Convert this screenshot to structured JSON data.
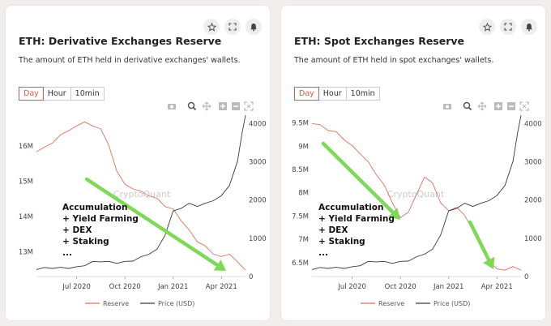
{
  "cards": [
    {
      "title": "ETH: Derivative Exchanges Reserve",
      "description": "The amount of ETH held in derivative exchanges' wallets.",
      "tabs": [
        "Day",
        "Hour",
        "10min"
      ],
      "active_tab": "Day"
    },
    {
      "title": "ETH: Spot Exchanges Reserve",
      "description": "The amount of ETH held in spot exchanges' wallets.",
      "tabs": [
        "Day",
        "Hour",
        "10min"
      ],
      "active_tab": "Day"
    }
  ],
  "toolbar_icons": [
    "star-icon",
    "expand-icon",
    "bell-icon"
  ],
  "chart_toolbar_icons": [
    "camera-icon",
    "zoom-icon",
    "pan-icon",
    "zoom-in-icon",
    "zoom-out-icon",
    "autoscale-icon"
  ],
  "colors": {
    "reserve": "#e0705a",
    "price": "#3a3a3a",
    "arrow": "#7ed957",
    "tab_active": "#e0584e"
  },
  "chart_data": [
    {
      "type": "line",
      "x_ticks": [
        "Jul 2020",
        "Oct 2020",
        "Jan 2021",
        "Apr 2021"
      ],
      "x_tick_months": [
        3.5,
        6.5,
        9.5,
        12.5
      ],
      "xlim_months": [
        1.0,
        14.0
      ],
      "yaxis_left": {
        "ticks": [
          "13M",
          "14M",
          "15M",
          "16M"
        ],
        "values": [
          13,
          14,
          15,
          16
        ],
        "range": [
          12.3,
          16.85
        ],
        "unit": "M"
      },
      "yaxis_right": {
        "ticks": [
          "0",
          "1000",
          "2000",
          "3000",
          "4000"
        ],
        "values": [
          0,
          1000,
          2000,
          3000,
          4000
        ],
        "range": [
          0,
          4200
        ]
      },
      "series": [
        {
          "name": "Reserve",
          "axis": "left",
          "color": "#e0705a",
          "months": [
            1.0,
            1.5,
            2.0,
            2.5,
            3.0,
            3.5,
            4.0,
            4.5,
            5.0,
            5.5,
            6.0,
            6.5,
            7.0,
            7.5,
            8.0,
            8.5,
            9.0,
            9.5,
            10.0,
            10.5,
            11.0,
            11.5,
            12.0,
            12.5,
            13.0,
            13.5,
            14.0
          ],
          "values": [
            15.85,
            15.95,
            16.1,
            16.3,
            16.45,
            16.55,
            16.7,
            16.55,
            16.5,
            16.0,
            15.3,
            14.9,
            14.8,
            14.7,
            14.6,
            14.5,
            14.3,
            14.2,
            13.9,
            13.6,
            13.3,
            13.15,
            12.95,
            12.85,
            12.95,
            12.7,
            12.5
          ]
        },
        {
          "name": "Price (USD)",
          "axis": "right",
          "color": "#3a3a3a",
          "months": [
            1.0,
            1.5,
            2.0,
            2.5,
            3.0,
            3.5,
            4.0,
            4.5,
            5.0,
            5.5,
            6.0,
            6.5,
            7.0,
            7.5,
            8.0,
            8.5,
            9.0,
            9.5,
            10.0,
            10.5,
            11.0,
            11.5,
            12.0,
            12.5,
            13.0,
            13.5,
            13.8,
            14.0
          ],
          "values": [
            200,
            220,
            230,
            225,
            230,
            240,
            300,
            380,
            400,
            380,
            360,
            380,
            420,
            500,
            600,
            700,
            1100,
            1700,
            1800,
            1900,
            1850,
            1900,
            2000,
            2100,
            2400,
            3000,
            3800,
            4200
          ]
        }
      ],
      "annotation": "Accumulation\n+ Yield Farming\n+ DEX\n+ Staking\n...",
      "watermark": "CryptoQuant",
      "legend": {
        "position": "bottom",
        "entries": [
          "Reserve",
          "Price (USD)"
        ]
      }
    },
    {
      "type": "line",
      "x_ticks": [
        "Jul 2020",
        "Oct 2020",
        "Jan 2021",
        "Apr 2021"
      ],
      "x_tick_months": [
        3.5,
        6.5,
        9.5,
        12.5
      ],
      "xlim_months": [
        1.0,
        14.0
      ],
      "yaxis_left": {
        "ticks": [
          "6.5M",
          "7M",
          "7.5M",
          "8M",
          "8.5M",
          "9M",
          "9.5M"
        ],
        "values": [
          6.5,
          7,
          7.5,
          8,
          8.5,
          9,
          9.5
        ],
        "range": [
          6.2,
          9.65
        ],
        "unit": "M"
      },
      "yaxis_right": {
        "ticks": [
          "0",
          "1000",
          "2000",
          "3000",
          "4000"
        ],
        "values": [
          0,
          1000,
          2000,
          3000,
          4000
        ],
        "range": [
          0,
          4200
        ]
      },
      "series": [
        {
          "name": "Reserve",
          "axis": "left",
          "color": "#e0705a",
          "months": [
            1.0,
            1.5,
            2.0,
            2.5,
            3.0,
            3.5,
            4.0,
            4.5,
            5.0,
            5.5,
            6.0,
            6.5,
            7.0,
            7.5,
            8.0,
            8.5,
            9.0,
            9.5,
            10.0,
            10.5,
            11.0,
            11.5,
            12.0,
            12.5,
            13.0,
            13.5,
            14.0
          ],
          "values": [
            9.5,
            9.45,
            9.35,
            9.3,
            9.15,
            9.0,
            8.85,
            8.65,
            8.4,
            8.15,
            7.8,
            7.45,
            7.6,
            7.95,
            8.35,
            8.2,
            7.8,
            7.6,
            7.7,
            7.5,
            7.2,
            6.85,
            6.55,
            6.35,
            6.35,
            6.4,
            6.35
          ]
        },
        {
          "name": "Price (USD)",
          "axis": "right",
          "color": "#3a3a3a",
          "months": [
            1.0,
            1.5,
            2.0,
            2.5,
            3.0,
            3.5,
            4.0,
            4.5,
            5.0,
            5.5,
            6.0,
            6.5,
            7.0,
            7.5,
            8.0,
            8.5,
            9.0,
            9.5,
            10.0,
            10.5,
            11.0,
            11.5,
            12.0,
            12.5,
            13.0,
            13.5,
            13.8,
            14.0
          ],
          "values": [
            200,
            220,
            230,
            225,
            230,
            240,
            300,
            380,
            400,
            380,
            360,
            380,
            420,
            500,
            600,
            700,
            1100,
            1700,
            1800,
            1900,
            1850,
            1900,
            2000,
            2100,
            2400,
            3000,
            3800,
            4200
          ]
        }
      ],
      "annotation": "Accumulation\n+ Yield Farming\n+ DEX\n+ Staking\n...",
      "watermark": "CryptoQuant",
      "legend": {
        "position": "bottom",
        "entries": [
          "Reserve",
          "Price (USD)"
        ]
      }
    }
  ]
}
